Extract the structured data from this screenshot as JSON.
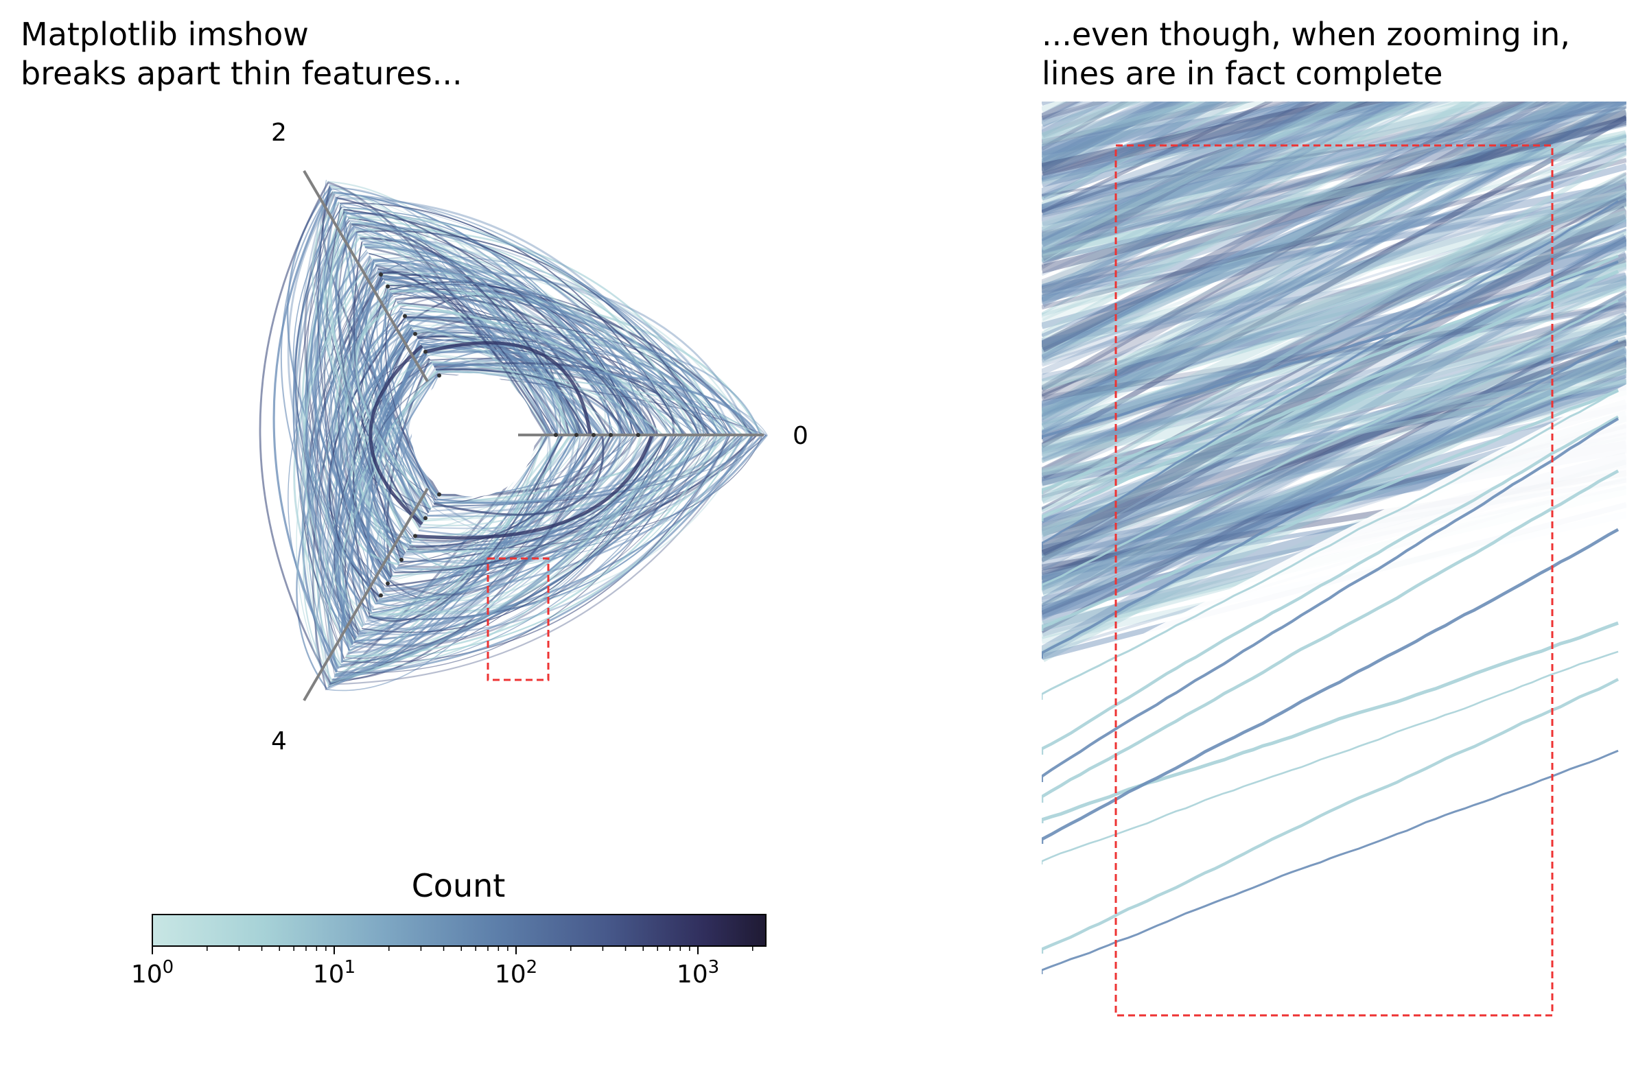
{
  "panel_left": {
    "title": "Matplotlib imshow\nbreaks apart thin features..."
  },
  "panel_right": {
    "title": "...even though, when zooming in,\nlines are in fact complete"
  },
  "chart_data": [
    {
      "type": "heatmap",
      "title": "Matplotlib imshow\nbreaks apart thin features...",
      "axis_labels": [
        "0",
        "2",
        "4"
      ],
      "highlight_box": "red dashed rectangle marking zoom region",
      "colorbar": {
        "label": "Count",
        "scale": "log",
        "range": [
          1,
          2500
        ],
        "ticks": [
          1,
          10,
          100,
          1000
        ],
        "tick_labels": [
          "10^0",
          "10^1",
          "10^2",
          "10^3"
        ],
        "colormap": [
          "#c8e6e4",
          "#a7d2d7",
          "#7ea7c3",
          "#5d7faa",
          "#47598b",
          "#302e5c",
          "#1f1a33"
        ]
      }
    },
    {
      "type": "heatmap",
      "title": "...even though, when zooming in,\nlines are in fact complete",
      "highlight_box": "red dashed rectangle"
    }
  ],
  "colors": {
    "axis_gray": "#808080",
    "highlight_red": "#ee3333",
    "line_mid": "#6a8db7",
    "line_light": "#a8d2d8",
    "line_dark": "#3a4a7c"
  }
}
